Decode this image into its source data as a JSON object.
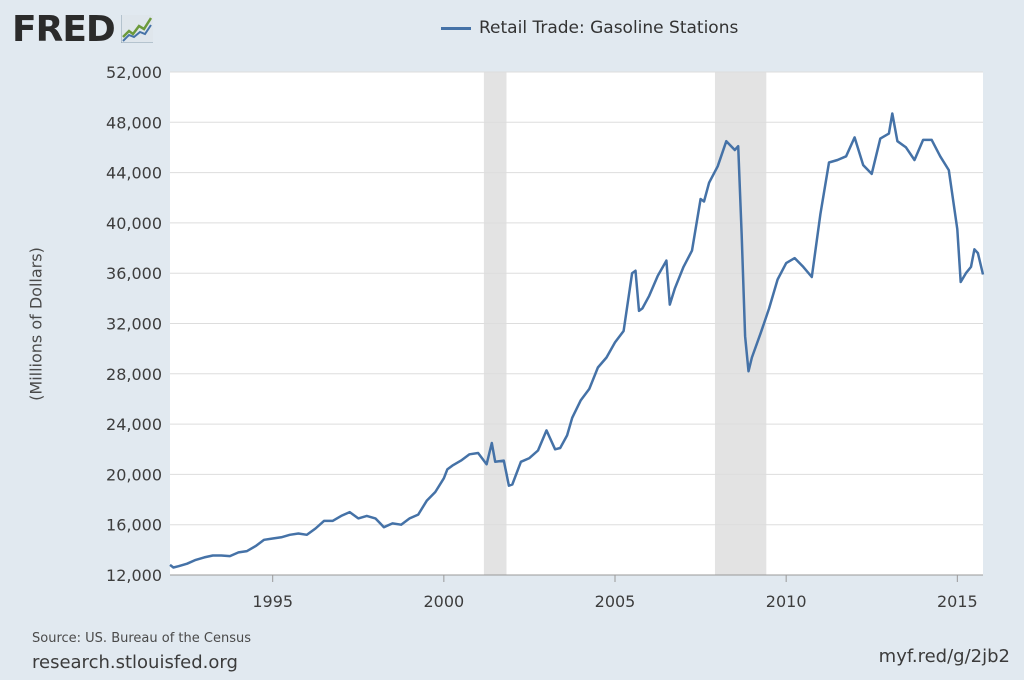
{
  "header": {
    "logo_text": "FRED",
    "legend_label": "Retail Trade: Gasoline Stations",
    "legend_color": "#4572a7"
  },
  "footer": {
    "source": "Source: US. Bureau of the Census",
    "site": "research.stlouisfed.org",
    "short_url": "myf.red/g/2jb2"
  },
  "colors": {
    "page_bg": "#e1e9f0",
    "plot_bg": "#ffffff",
    "recession": "#e3e3e3",
    "grid": "#dddddd",
    "line": "#4572a7"
  },
  "chart_data": {
    "type": "line",
    "title": "",
    "ylabel": "(Millions of Dollars)",
    "xlabel": "",
    "ylim": [
      12000,
      52000
    ],
    "xlim": [
      1992.0,
      2015.75
    ],
    "yticks": [
      12000,
      16000,
      20000,
      24000,
      28000,
      32000,
      36000,
      40000,
      44000,
      48000,
      52000
    ],
    "ytick_labels": [
      "12,000",
      "16,000",
      "20,000",
      "24,000",
      "28,000",
      "32,000",
      "36,000",
      "40,000",
      "44,000",
      "48,000",
      "52,000"
    ],
    "xticks": [
      1995,
      2000,
      2005,
      2010,
      2015
    ],
    "xtick_labels": [
      "1995",
      "2000",
      "2005",
      "2010",
      "2015"
    ],
    "grid": true,
    "recessions": [
      [
        2001.17,
        2001.83
      ],
      [
        2007.92,
        2009.42
      ]
    ],
    "series": [
      {
        "name": "Retail Trade: Gasoline Stations",
        "x": [
          1992.0,
          1992.1,
          1992.25,
          1992.5,
          1992.75,
          1993.0,
          1993.25,
          1993.5,
          1993.75,
          1994.0,
          1994.25,
          1994.5,
          1994.75,
          1995.0,
          1995.25,
          1995.5,
          1995.75,
          1996.0,
          1996.25,
          1996.5,
          1996.75,
          1997.0,
          1997.25,
          1997.5,
          1997.75,
          1998.0,
          1998.25,
          1998.5,
          1998.75,
          1999.0,
          1999.25,
          1999.5,
          1999.75,
          2000.0,
          2000.1,
          2000.25,
          2000.5,
          2000.75,
          2001.0,
          2001.25,
          2001.4,
          2001.5,
          2001.75,
          2001.9,
          2002.0,
          2002.25,
          2002.5,
          2002.75,
          2003.0,
          2003.25,
          2003.4,
          2003.6,
          2003.75,
          2004.0,
          2004.25,
          2004.5,
          2004.75,
          2005.0,
          2005.25,
          2005.5,
          2005.6,
          2005.7,
          2005.8,
          2006.0,
          2006.25,
          2006.5,
          2006.6,
          2006.75,
          2007.0,
          2007.25,
          2007.5,
          2007.6,
          2007.75,
          2008.0,
          2008.25,
          2008.5,
          2008.6,
          2008.7,
          2008.8,
          2008.9,
          2009.0,
          2009.25,
          2009.5,
          2009.75,
          2010.0,
          2010.25,
          2010.5,
          2010.75,
          2011.0,
          2011.25,
          2011.5,
          2011.75,
          2012.0,
          2012.25,
          2012.5,
          2012.75,
          2013.0,
          2013.1,
          2013.25,
          2013.5,
          2013.75,
          2014.0,
          2014.25,
          2014.5,
          2014.75,
          2015.0,
          2015.1,
          2015.25,
          2015.4,
          2015.5,
          2015.6,
          2015.75
        ],
        "values": [
          12800,
          12600,
          12700,
          12900,
          13200,
          13400,
          13550,
          13550,
          13500,
          13800,
          13900,
          14300,
          14800,
          14900,
          15000,
          15200,
          15300,
          15200,
          15700,
          16300,
          16300,
          16700,
          17000,
          16500,
          16700,
          16500,
          15800,
          16100,
          16000,
          16500,
          16800,
          17900,
          18600,
          19700,
          20400,
          20700,
          21100,
          21600,
          21700,
          20800,
          22500,
          21000,
          21100,
          19100,
          19200,
          21000,
          21300,
          21900,
          23500,
          22000,
          22100,
          23100,
          24500,
          25900,
          26800,
          28500,
          29300,
          30500,
          31400,
          36000,
          36200,
          33000,
          33200,
          34200,
          35800,
          37000,
          33500,
          34800,
          36500,
          37800,
          41900,
          41700,
          43200,
          44500,
          46500,
          45800,
          46100,
          39000,
          31000,
          28200,
          29300,
          31200,
          33200,
          35500,
          36800,
          37200,
          36500,
          35700,
          40700,
          44800,
          45000,
          45300,
          46800,
          44600,
          43900,
          46700,
          47100,
          48700,
          46500,
          46000,
          45000,
          46600,
          46600,
          45300,
          44200,
          39500,
          35300,
          36000,
          36500,
          37900,
          37600,
          35900
        ]
      }
    ]
  }
}
